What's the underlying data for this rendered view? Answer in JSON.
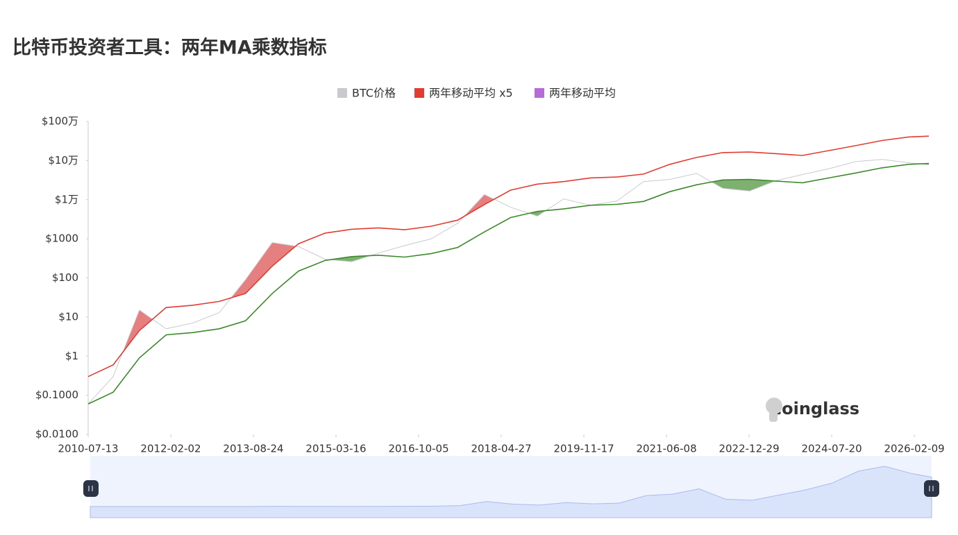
{
  "chart_data": {
    "type": "line",
    "title": "比特币投资者工具：两年MA乘数指标",
    "watermark": "coinglass",
    "log_scale": true,
    "legend": "top",
    "x": [
      "2010-07-13",
      "2011-01-01",
      "2011-07-01",
      "2012-01-01",
      "2012-07-01",
      "2013-01-01",
      "2013-07-01",
      "2014-01-01",
      "2014-07-01",
      "2015-01-01",
      "2015-07-01",
      "2016-01-01",
      "2016-07-01",
      "2017-01-01",
      "2017-07-01",
      "2018-01-01",
      "2018-07-01",
      "2019-01-01",
      "2019-07-01",
      "2020-01-01",
      "2020-07-01",
      "2021-01-01",
      "2021-07-01",
      "2022-01-01",
      "2022-07-01",
      "2023-01-01",
      "2023-07-01",
      "2024-01-01",
      "2024-07-01",
      "2025-01-01",
      "2025-07-01",
      "2026-01-01",
      "2026-05-20"
    ],
    "xlim": [
      "2010-07-13",
      "2026-05-20"
    ],
    "xticks": [
      "2010-07-13",
      "2012-02-02",
      "2013-08-24",
      "2015-03-16",
      "2016-10-05",
      "2018-04-27",
      "2019-11-17",
      "2021-06-08",
      "2022-12-29",
      "2024-07-20",
      "2026-02-09"
    ],
    "ylim": [
      0.01,
      1000000
    ],
    "yticks": [
      {
        "value": 0.01,
        "label": "$0.0100"
      },
      {
        "value": 0.1,
        "label": "$0.1000"
      },
      {
        "value": 1,
        "label": "$1"
      },
      {
        "value": 10,
        "label": "$10"
      },
      {
        "value": 100,
        "label": "$100"
      },
      {
        "value": 1000,
        "label": "$1000"
      },
      {
        "value": 10000,
        "label": "$1万"
      },
      {
        "value": 100000,
        "label": "$10万"
      },
      {
        "value": 1000000,
        "label": "$100万"
      }
    ],
    "series": [
      {
        "name": "BTC价格",
        "color": "#c8cacd",
        "values": [
          0.06,
          0.3,
          15,
          5,
          7,
          13,
          90,
          800,
          630,
          300,
          260,
          430,
          670,
          1000,
          2500,
          13500,
          6400,
          3800,
          10500,
          7200,
          9200,
          29000,
          33000,
          47000,
          19500,
          16600,
          30500,
          44000,
          62000,
          94000,
          107000,
          88000,
          78000
        ]
      },
      {
        "name": "两年移动平均 x5",
        "color": "#e03c31",
        "values": [
          0.3,
          0.6,
          4.5,
          17.5,
          20,
          25,
          40,
          200,
          750,
          1400,
          1750,
          1900,
          1700,
          2100,
          3000,
          7500,
          17500,
          25000,
          29000,
          36000,
          38000,
          45000,
          80000,
          120000,
          160000,
          165000,
          150000,
          135000,
          180000,
          240000,
          325000,
          400000,
          420000
        ]
      },
      {
        "name": "两年移动平均",
        "color": "#b56cd6",
        "line_color": "#3a8a2a",
        "values": [
          0.06,
          0.12,
          0.9,
          3.5,
          4,
          5,
          8,
          40,
          150,
          280,
          350,
          380,
          340,
          420,
          600,
          1500,
          3500,
          5000,
          5800,
          7200,
          7600,
          9000,
          16000,
          24000,
          32000,
          33000,
          30000,
          27000,
          36000,
          48000,
          65000,
          80000,
          84000
        ]
      }
    ]
  }
}
